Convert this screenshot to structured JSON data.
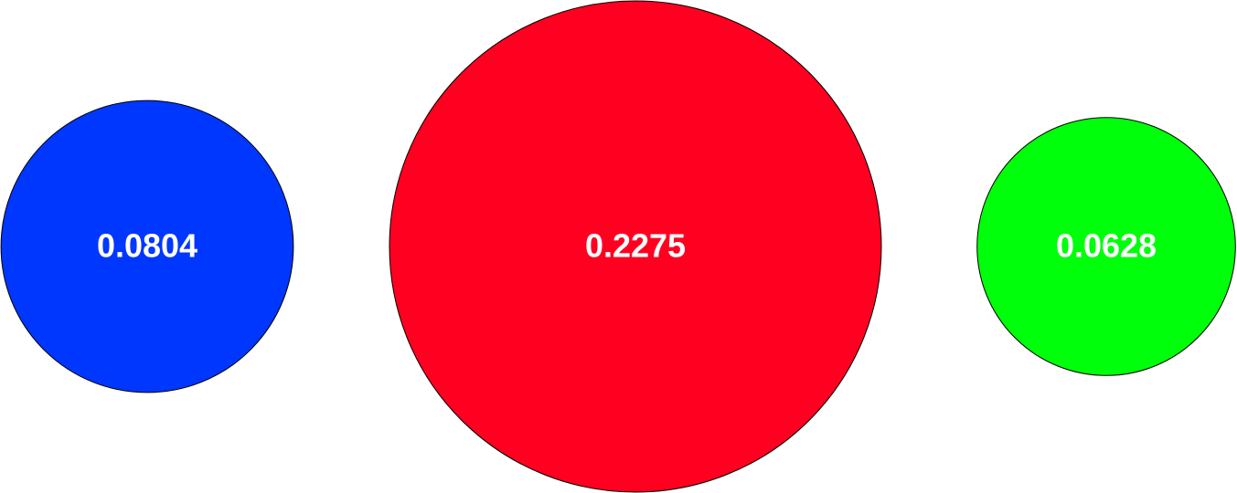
{
  "chart_data": {
    "type": "bubble",
    "items": [
      {
        "label": "0.0804",
        "value": 0.0804,
        "color": "#0037ff"
      },
      {
        "label": "0.2275",
        "value": 0.2275,
        "color": "#ff0020"
      },
      {
        "label": "0.0628",
        "value": 0.0628,
        "color": "#00ff0a"
      }
    ],
    "stroke_color": "#000000",
    "label_color": "#ffffff"
  }
}
